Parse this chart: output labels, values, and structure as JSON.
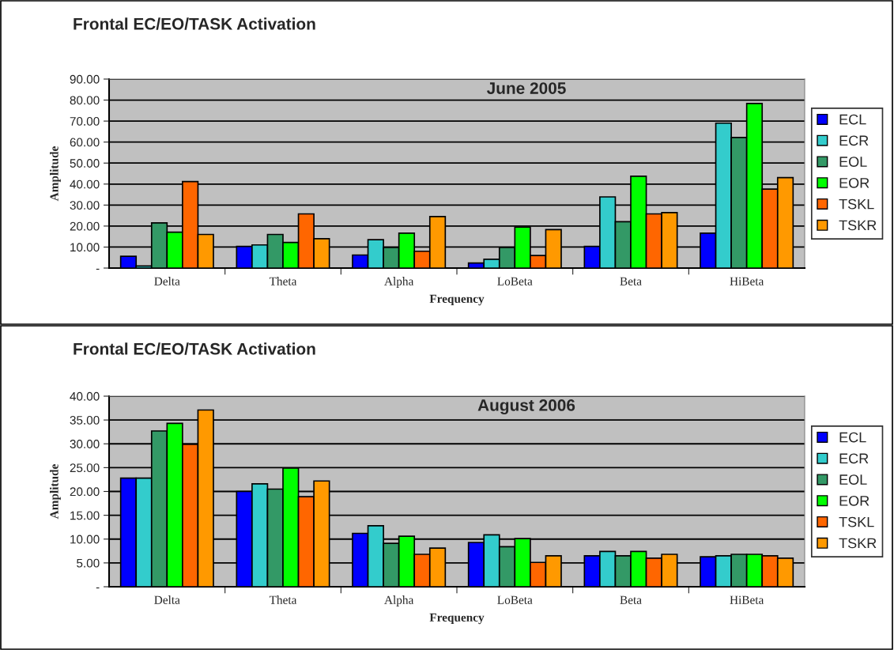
{
  "chart_data": [
    {
      "type": "bar",
      "title": "Frontal EC/EO/TASK Activation",
      "subtitle": "June 2005",
      "xlabel": "Frequency",
      "ylabel": "Amplitude",
      "categories": [
        "Delta",
        "Theta",
        "Alpha",
        "LoBeta",
        "Beta",
        "HiBeta"
      ],
      "series": [
        {
          "name": "ECL",
          "color": "#0000ff",
          "values": [
            5.6,
            10.3,
            6.2,
            2.4,
            10.3,
            16.6
          ]
        },
        {
          "name": "ECR",
          "color": "#33cccc",
          "values": [
            1.0,
            11.0,
            13.5,
            4.2,
            33.9,
            69.0
          ]
        },
        {
          "name": "EOL",
          "color": "#339966",
          "values": [
            21.5,
            16.0,
            9.8,
            9.8,
            22.1,
            62.2
          ]
        },
        {
          "name": "EOR",
          "color": "#00ff00",
          "values": [
            17.1,
            12.2,
            16.6,
            19.5,
            43.7,
            78.4
          ]
        },
        {
          "name": "TSKL",
          "color": "#ff6600",
          "values": [
            41.2,
            25.8,
            8.0,
            6.0,
            25.8,
            37.6
          ]
        },
        {
          "name": "TSKR",
          "color": "#ff9900",
          "values": [
            16.0,
            14.0,
            24.5,
            18.3,
            26.4,
            43.1
          ]
        }
      ],
      "ylim": [
        0,
        90
      ],
      "yticks": [
        {
          "value": 0,
          "label": "-"
        },
        {
          "value": 10,
          "label": "10.00"
        },
        {
          "value": 20,
          "label": "20.00"
        },
        {
          "value": 30,
          "label": "30.00"
        },
        {
          "value": 40,
          "label": "40.00"
        },
        {
          "value": 50,
          "label": "50.00"
        },
        {
          "value": 60,
          "label": "60.00"
        },
        {
          "value": 70,
          "label": "70.00"
        },
        {
          "value": 80,
          "label": "80.00"
        },
        {
          "value": 90,
          "label": "90.00"
        }
      ],
      "grid": "y",
      "legend": "right"
    },
    {
      "type": "bar",
      "title": "Frontal EC/EO/TASK Activation",
      "subtitle": "August 2006",
      "xlabel": "Frequency",
      "ylabel": "Amplitude",
      "categories": [
        "Delta",
        "Theta",
        "Alpha",
        "LoBeta",
        "Beta",
        "HiBeta"
      ],
      "series": [
        {
          "name": "ECL",
          "color": "#0000ff",
          "values": [
            22.8,
            20.0,
            11.2,
            9.3,
            6.5,
            6.3
          ]
        },
        {
          "name": "ECR",
          "color": "#33cccc",
          "values": [
            22.8,
            21.6,
            12.8,
            10.9,
            7.4,
            6.5
          ]
        },
        {
          "name": "EOL",
          "color": "#339966",
          "values": [
            32.7,
            20.5,
            9.1,
            8.4,
            6.5,
            6.8
          ]
        },
        {
          "name": "EOR",
          "color": "#00ff00",
          "values": [
            34.3,
            24.9,
            10.6,
            10.1,
            7.4,
            6.8
          ]
        },
        {
          "name": "TSKL",
          "color": "#ff6600",
          "values": [
            29.9,
            18.9,
            6.8,
            5.1,
            6.0,
            6.5
          ]
        },
        {
          "name": "TSKR",
          "color": "#ff9900",
          "values": [
            37.1,
            22.2,
            8.1,
            6.5,
            6.8,
            6.0
          ]
        }
      ],
      "ylim": [
        0,
        40
      ],
      "yticks": [
        {
          "value": 0,
          "label": "-"
        },
        {
          "value": 5,
          "label": "5.00"
        },
        {
          "value": 10,
          "label": "10.00"
        },
        {
          "value": 15,
          "label": "15.00"
        },
        {
          "value": 20,
          "label": "20.00"
        },
        {
          "value": 25,
          "label": "25.00"
        },
        {
          "value": 30,
          "label": "30.00"
        },
        {
          "value": 35,
          "label": "35.00"
        },
        {
          "value": 40,
          "label": "40.00"
        }
      ],
      "grid": "y",
      "legend": "right"
    }
  ]
}
